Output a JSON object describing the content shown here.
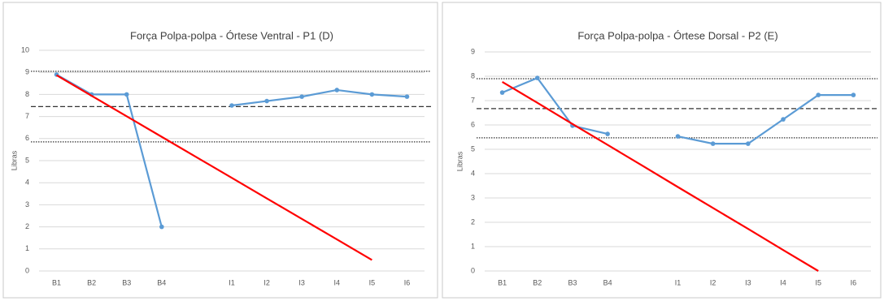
{
  "chart_data": [
    {
      "type": "line",
      "title": "Força Polpa-polpa - Órtese Ventral - P1 (D)",
      "y_label": "Libras",
      "categories": [
        "B1",
        "B2",
        "B3",
        "B4",
        null,
        "I1",
        "I2",
        "I3",
        "I4",
        "I5",
        "I6"
      ],
      "series": [
        {
          "color": "#5b9bd5",
          "markers": true,
          "values": [
            8.9,
            8.0,
            8.0,
            2.0,
            null,
            7.5,
            7.7,
            7.9,
            8.2,
            8.0,
            7.9
          ]
        },
        {
          "color": "#ff0000",
          "markers": false,
          "values": [
            8.87,
            7.94,
            7.01,
            6.08,
            5.15,
            4.22,
            3.29,
            2.36,
            1.43,
            0.5,
            null
          ]
        }
      ],
      "reference_lines": [
        {
          "value": 9.05,
          "dash": "dotted"
        },
        {
          "value": 7.45,
          "dash": "dashed"
        },
        {
          "value": 5.85,
          "dash": "dotted"
        }
      ],
      "ylim": [
        0,
        10
      ],
      "yticks": [
        0,
        1,
        2,
        3,
        4,
        5,
        6,
        7,
        8,
        9,
        10
      ],
      "grid": true
    },
    {
      "type": "line",
      "title": "Força Polpa-polpa - Órtese Dorsal - P2 (E)",
      "y_label": "Libras",
      "categories": [
        "B1",
        "B2",
        "B3",
        "B4",
        null,
        "I1",
        "I2",
        "I3",
        "I4",
        "I5",
        "I6"
      ],
      "series": [
        {
          "color": "#5b9bd5",
          "markers": true,
          "values": [
            7.33,
            7.93,
            5.97,
            5.63,
            null,
            5.53,
            5.23,
            5.23,
            6.23,
            7.23,
            7.23
          ]
        },
        {
          "color": "#ff0000",
          "markers": false,
          "values": [
            7.77,
            6.91,
            6.04,
            5.18,
            4.32,
            3.45,
            2.59,
            1.73,
            0.86,
            0,
            null
          ]
        }
      ],
      "reference_lines": [
        {
          "value": 7.9,
          "dash": "dotted"
        },
        {
          "value": 6.67,
          "dash": "dashed"
        },
        {
          "value": 5.47,
          "dash": "dotted"
        }
      ],
      "ylim": [
        0,
        9
      ],
      "yticks": [
        0,
        1,
        2,
        3,
        4,
        5,
        6,
        7,
        8,
        9
      ],
      "grid": true
    }
  ]
}
